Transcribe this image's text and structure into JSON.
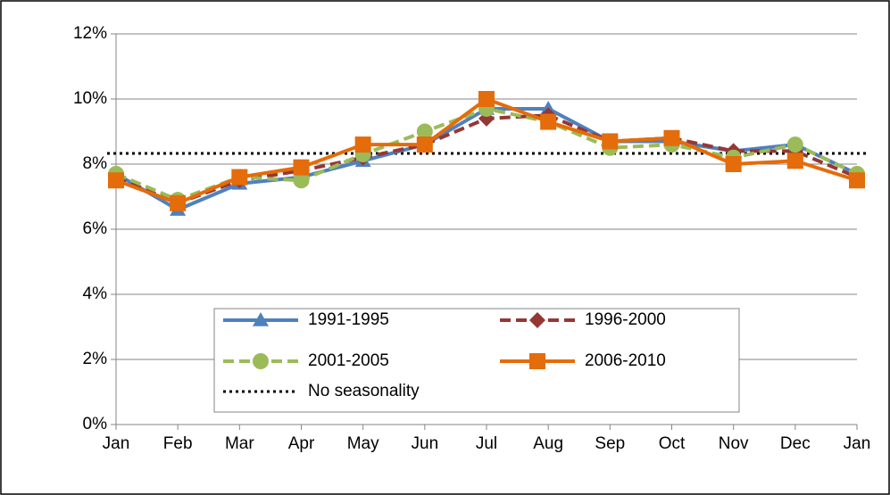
{
  "chart_data": {
    "type": "line",
    "categories": [
      "Jan",
      "Feb",
      "Mar",
      "Apr",
      "May",
      "Jun",
      "Jul",
      "Aug",
      "Sep",
      "Oct",
      "Nov",
      "Dec",
      "Jan"
    ],
    "series": [
      {
        "name": "1991-1995",
        "color": "#4f81bd",
        "marker": "triangle",
        "dash": "solid",
        "values": [
          7.7,
          6.6,
          7.4,
          7.6,
          8.1,
          8.6,
          9.7,
          9.7,
          8.7,
          8.7,
          8.4,
          8.6,
          7.7
        ]
      },
      {
        "name": "1996-2000",
        "color": "#953735",
        "marker": "diamond",
        "dash": "dash",
        "values": [
          7.6,
          6.8,
          7.5,
          7.8,
          8.2,
          8.6,
          9.4,
          9.5,
          8.7,
          8.8,
          8.4,
          8.4,
          7.6
        ]
      },
      {
        "name": "2001-2005",
        "color": "#9bbb59",
        "marker": "circle",
        "dash": "dash",
        "values": [
          7.7,
          6.9,
          7.6,
          7.5,
          8.3,
          9.0,
          9.7,
          9.3,
          8.5,
          8.6,
          8.2,
          8.6,
          7.7
        ]
      },
      {
        "name": "2006-2010",
        "color": "#e46c0a",
        "marker": "square",
        "dash": "solid",
        "values": [
          7.5,
          6.8,
          7.6,
          7.9,
          8.6,
          8.6,
          10.0,
          9.3,
          8.7,
          8.8,
          8.0,
          8.1,
          7.5
        ]
      },
      {
        "name": "No seasonality",
        "color": "#000000",
        "marker": "none",
        "dash": "dot",
        "values": [
          8.33,
          8.33,
          8.33,
          8.33,
          8.33,
          8.33,
          8.33,
          8.33,
          8.33,
          8.33,
          8.33,
          8.33,
          8.33
        ]
      }
    ],
    "ylim": [
      0,
      12
    ],
    "yticks": [
      {
        "value": 0,
        "label": "0%"
      },
      {
        "value": 2,
        "label": "2%"
      },
      {
        "value": 4,
        "label": "4%"
      },
      {
        "value": 6,
        "label": "6%"
      },
      {
        "value": 8,
        "label": "8%"
      },
      {
        "value": 10,
        "label": "10%"
      },
      {
        "value": 12,
        "label": "12%"
      }
    ],
    "grid": true,
    "legend": "bottom"
  }
}
